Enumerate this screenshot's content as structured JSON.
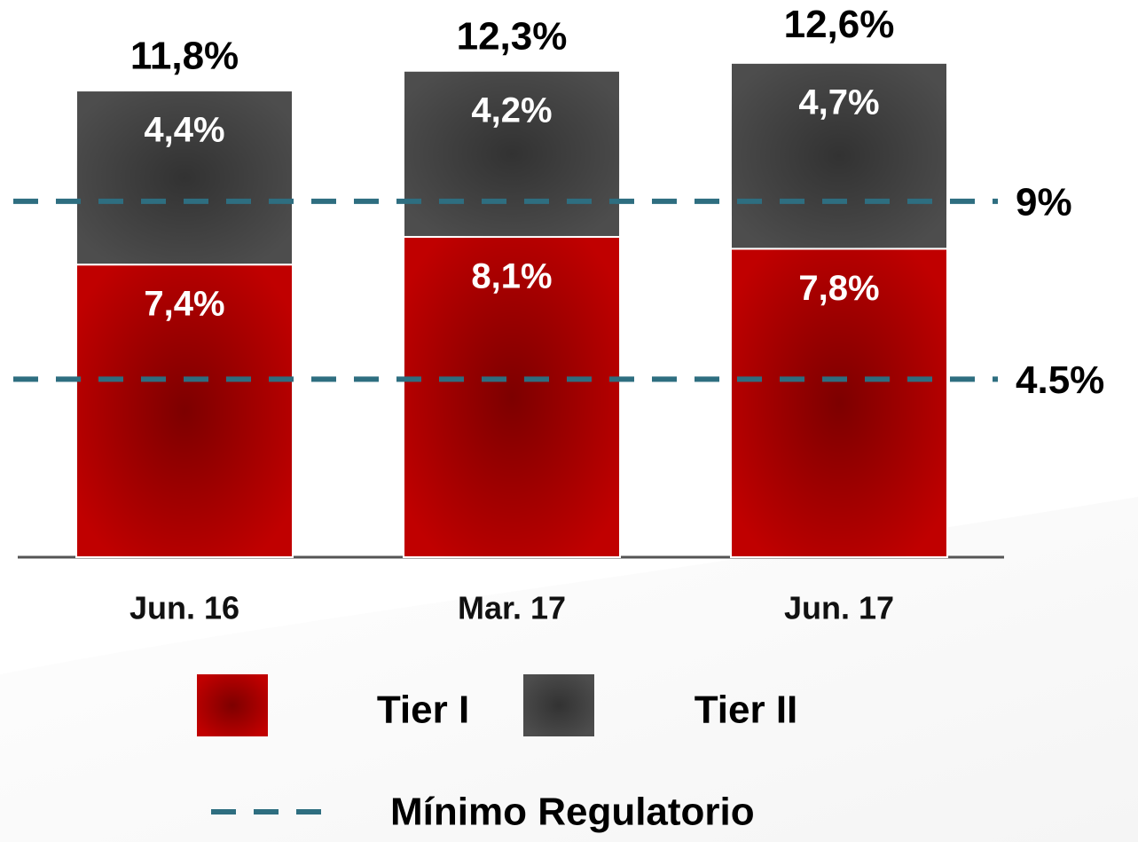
{
  "chart_data": {
    "type": "stacked_bar",
    "categories": [
      "Jun. 16",
      "Mar. 17",
      "Jun. 17"
    ],
    "series": [
      {
        "name": "Tier I",
        "color": "#c00000",
        "values": [
          7.4,
          8.1,
          7.8
        ],
        "value_labels": [
          "7,4%",
          "8,1%",
          "7,8%"
        ]
      },
      {
        "name": "Tier II",
        "color": "#4d4d4d",
        "values": [
          4.4,
          4.2,
          4.7
        ],
        "value_labels": [
          "4,4%",
          "4,2%",
          "4,7%"
        ]
      }
    ],
    "totals": [
      11.8,
      12.3,
      12.6
    ],
    "total_labels": [
      "11,8%",
      "12,3%",
      "12,6%"
    ],
    "reference_lines": {
      "name": "Mínimo Regulatorio",
      "color": "#2e6e80",
      "values": [
        9,
        4.5
      ],
      "labels": [
        "9%",
        "4.5%"
      ]
    },
    "ylim": [
      0,
      14
    ]
  }
}
